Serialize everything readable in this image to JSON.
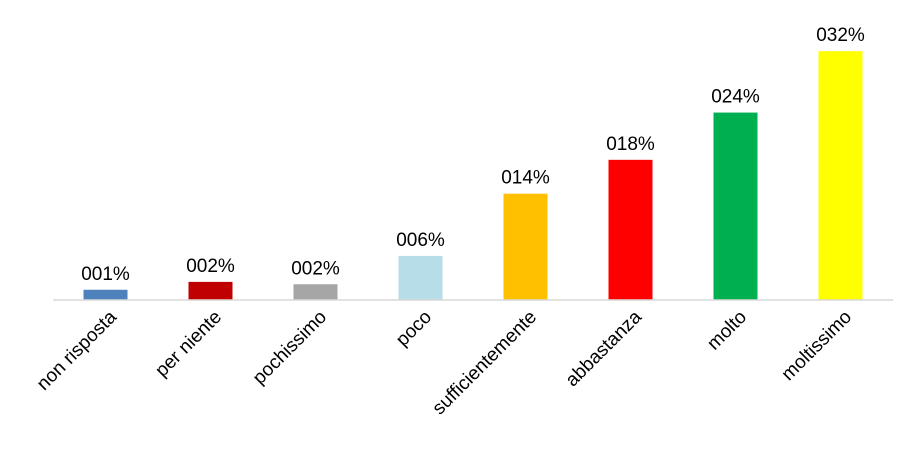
{
  "chart_data": {
    "type": "bar",
    "categories": [
      "non risposta",
      "per niente",
      "pochissimo",
      "poco",
      "sufficientemente",
      "abbastanza",
      "molto",
      "moltissimo"
    ],
    "values": [
      1.3,
      2.3,
      2.0,
      5.6,
      13.5,
      17.8,
      23.8,
      31.6
    ],
    "data_labels": [
      "001%",
      "002%",
      "002%",
      "006%",
      "014%",
      "018%",
      "024%",
      "032%"
    ],
    "colors": [
      "#4F81BD",
      "#C00000",
      "#A6A6A6",
      "#B7DDE8",
      "#FFC000",
      "#FF0000",
      "#00B050",
      "#FFFF00"
    ],
    "ylim": [
      0,
      32
    ],
    "grid": false,
    "legend": "none"
  }
}
